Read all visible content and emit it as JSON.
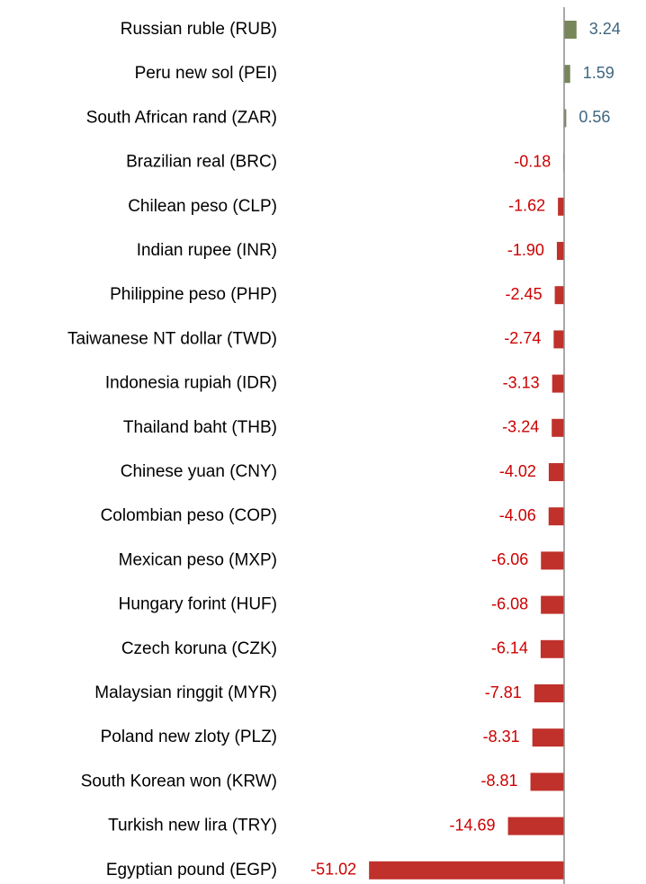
{
  "chart_data": {
    "type": "hbar",
    "categories": [
      "Russian ruble (RUB)",
      "Peru new sol (PEI)",
      "South African rand (ZAR)",
      "Brazilian real (BRC)",
      "Chilean peso (CLP)",
      "Indian rupee (INR)",
      "Philippine peso (PHP)",
      "Taiwanese NT dollar (TWD)",
      "Indonesia rupiah (IDR)",
      "Thailand baht (THB)",
      "Chinese yuan (CNY)",
      "Colombian peso (COP)",
      "Mexican peso (MXP)",
      "Hungary forint (HUF)",
      "Czech koruna (CZK)",
      "Malaysian ringgit (MYR)",
      "Poland new zloty (PLZ)",
      "South Korean won (KRW)",
      "Turkish new lira (TRY)",
      "Egyptian pound (EGP)"
    ],
    "values": [
      3.24,
      1.59,
      0.56,
      -0.18,
      -1.62,
      -1.9,
      -2.45,
      -2.74,
      -3.13,
      -3.24,
      -4.02,
      -4.06,
      -6.06,
      -6.08,
      -6.14,
      -7.81,
      -8.31,
      -8.81,
      -14.69,
      -51.02
    ],
    "value_labels": [
      "3.24",
      "1.59",
      "0.56",
      "-0.18",
      "-1.62",
      "-1.90",
      "-2.45",
      "-2.74",
      "-3.13",
      "-3.24",
      "-4.02",
      "-4.06",
      "-6.06",
      "-6.08",
      "-6.14",
      "-7.81",
      "-8.31",
      "-8.81",
      "-14.69",
      "-51.02"
    ],
    "positive_color": "#77875a",
    "negative_color": "#c0312b",
    "positive_label_color": "#3e6680",
    "negative_label_color": "#cc0000"
  }
}
